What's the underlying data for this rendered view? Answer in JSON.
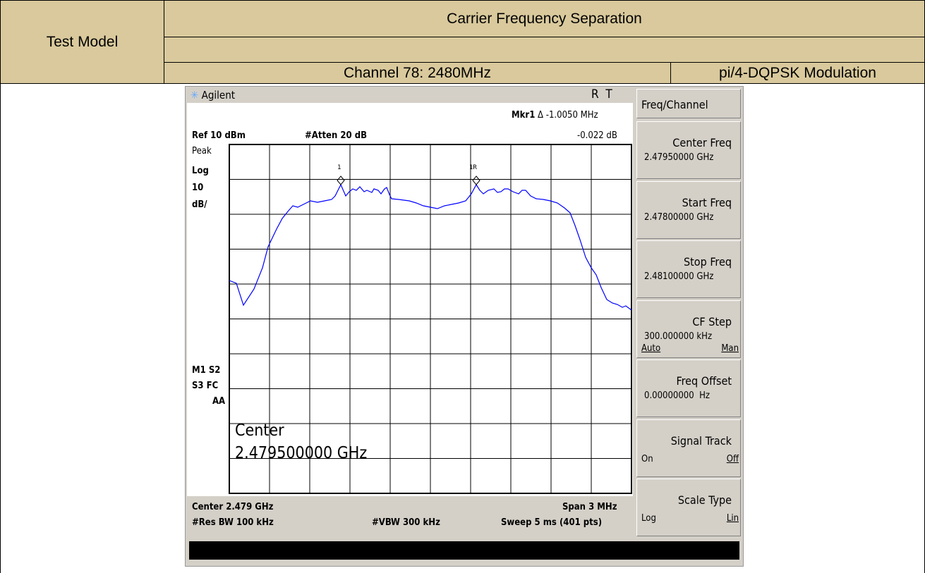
{
  "header": {
    "title": "Carrier Frequency Separation",
    "test_model": "Test Model",
    "channel": "Channel 78: 2480MHz",
    "modulation": "pi/4-DQPSK Modulation"
  },
  "analyzer": {
    "brand": "Agilent",
    "status": "R  T",
    "marker_name": "Mkr1",
    "marker_delta": "Δ -1.0050 MHz",
    "marker_level": "-0.022 dB",
    "ref": "Ref 10 dBm",
    "atten": "#Atten 20 dB",
    "left_labels": [
      "Peak",
      "Log",
      "10",
      "dB/"
    ],
    "flags": [
      "M1 S2",
      "S3 FC",
      "AA"
    ],
    "marker_labels": [
      "1",
      "1R"
    ],
    "center_label": "Center",
    "center_value": "2.479500000 GHz",
    "center": "Center 2.479 GHz",
    "span": "Span 3 MHz",
    "res_bw": "#Res BW 100 kHz",
    "vbw": "#VBW 300 kHz",
    "sweep": "Sweep 5 ms (401 pts)"
  },
  "softkeys": {
    "title": "Freq/Channel",
    "keys": [
      {
        "label": "Center Freq",
        "value": "2.47950000 GHz"
      },
      {
        "label": "Start Freq",
        "value": "2.47800000 GHz"
      },
      {
        "label": "Stop Freq",
        "value": "2.48100000 GHz"
      },
      {
        "label": "CF Step",
        "value": "300.000000 kHz",
        "left": "Auto",
        "right": "Man"
      },
      {
        "label": "Freq Offset",
        "value": "0.00000000  Hz"
      },
      {
        "label": "Signal Track",
        "left": "On",
        "right": "Off"
      },
      {
        "label": "Scale Type",
        "left": "Log",
        "right": "Lin"
      }
    ]
  }
}
